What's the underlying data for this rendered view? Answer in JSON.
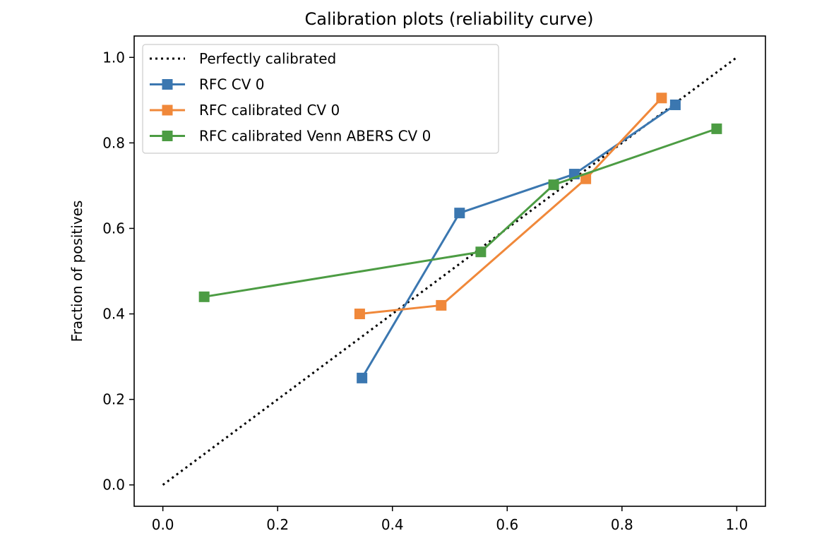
{
  "chart_data": {
    "type": "line",
    "title": "Calibration plots  (reliability curve)",
    "xlabel": "",
    "ylabel": "Fraction of positives",
    "xlim": [
      -0.05,
      1.05
    ],
    "ylim": [
      -0.05,
      1.05
    ],
    "xticks": [
      0.0,
      0.2,
      0.4,
      0.6,
      0.8,
      1.0
    ],
    "yticks": [
      0.0,
      0.2,
      0.4,
      0.6,
      0.8,
      1.0
    ],
    "xtick_labels": [
      "0.0",
      "0.2",
      "0.4",
      "0.6",
      "0.8",
      "1.0"
    ],
    "ytick_labels": [
      "0.0",
      "0.2",
      "0.4",
      "0.6",
      "0.8",
      "1.0"
    ],
    "grid": false,
    "legend_position": "upper-left",
    "reference": {
      "name": "Perfectly calibrated",
      "x": [
        0,
        1
      ],
      "y": [
        0,
        1
      ],
      "color": "#000000",
      "style": "dotted"
    },
    "series": [
      {
        "name": "RFC CV 0",
        "color": "#3b77b0",
        "marker": "square",
        "x": [
          0.347,
          0.517,
          0.717,
          0.893
        ],
        "y": [
          0.25,
          0.636,
          0.727,
          0.889
        ]
      },
      {
        "name": "RFC calibrated CV 0",
        "color": "#f0883a",
        "marker": "square",
        "x": [
          0.343,
          0.485,
          0.737,
          0.869
        ],
        "y": [
          0.4,
          0.42,
          0.716,
          0.905
        ]
      },
      {
        "name": "RFC calibrated Venn ABERS CV 0",
        "color": "#4c9c43",
        "marker": "square",
        "x": [
          0.072,
          0.554,
          0.681,
          0.965
        ],
        "y": [
          0.44,
          0.545,
          0.702,
          0.833
        ]
      }
    ]
  }
}
